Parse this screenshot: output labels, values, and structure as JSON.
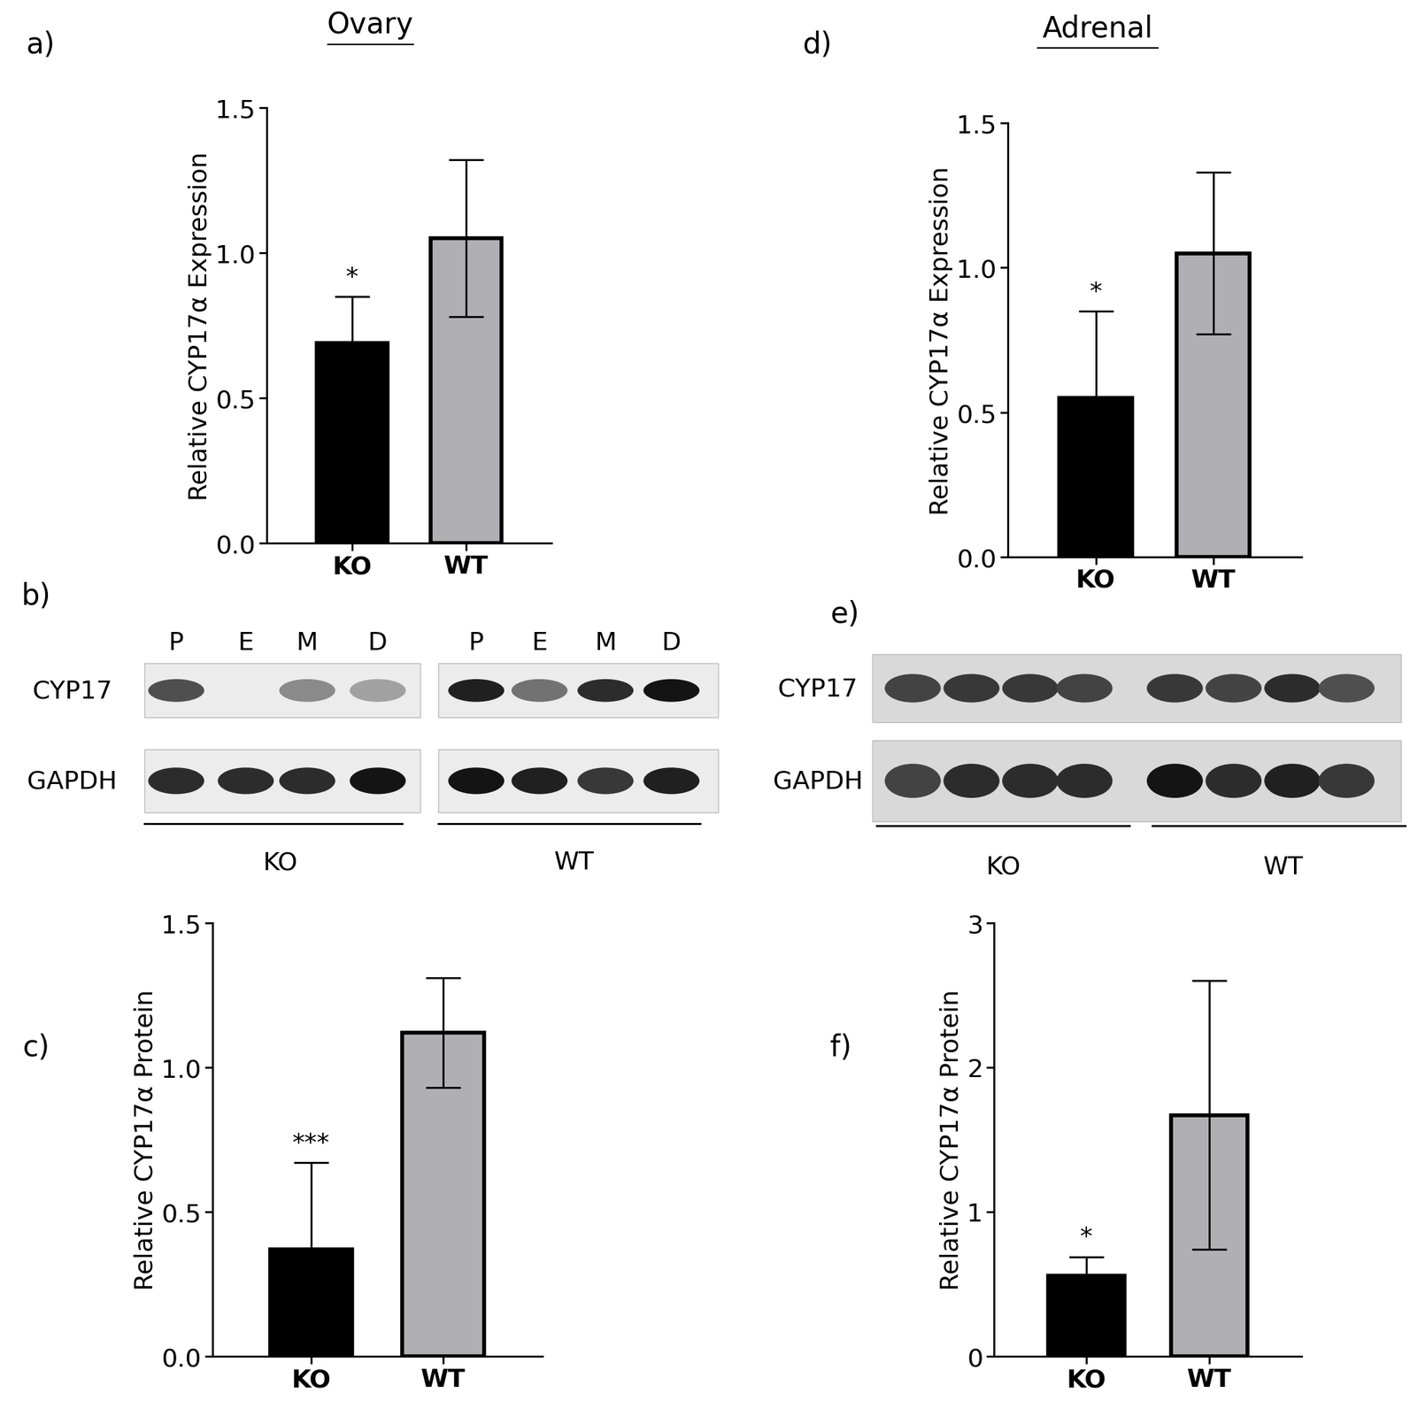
{
  "section_titles": [
    "Ovary",
    "Adrenal"
  ],
  "chart_data": [
    {
      "panel": "a)",
      "type": "bar",
      "ylabel": "Relative CYP17α Expression",
      "categories": [
        "KO",
        "WT"
      ],
      "values": [
        0.69,
        1.05
      ],
      "errors": [
        0.16,
        0.27
      ],
      "colors": [
        "#000000",
        "#b0b0b4"
      ],
      "annotations": [
        {
          "category": "KO",
          "text": "*"
        }
      ],
      "ylim": [
        0,
        1.5
      ],
      "yticks": [
        {
          "value": 0,
          "label": "0.0"
        },
        {
          "value": 0.5,
          "label": "0.5"
        },
        {
          "value": 1.0,
          "label": "1.0"
        },
        {
          "value": 1.5,
          "label": "1.5"
        }
      ]
    },
    {
      "panel": "c)",
      "type": "bar",
      "ylabel": "Relative CYP17α Protein",
      "categories": [
        "KO",
        "WT"
      ],
      "values": [
        0.37,
        1.12
      ],
      "errors": [
        0.3,
        0.19
      ],
      "colors": [
        "#000000",
        "#b0b0b4"
      ],
      "annotations": [
        {
          "category": "KO",
          "text": "***"
        }
      ],
      "ylim": [
        0,
        1.5
      ],
      "yticks": [
        {
          "value": 0,
          "label": "0.0"
        },
        {
          "value": 0.5,
          "label": "0.5"
        },
        {
          "value": 1.0,
          "label": "1.0"
        },
        {
          "value": 1.5,
          "label": "1.5"
        }
      ]
    },
    {
      "panel": "d)",
      "type": "bar",
      "ylabel": "Relative CYP17α Expression",
      "categories": [
        "KO",
        "WT"
      ],
      "values": [
        0.55,
        1.05
      ],
      "errors": [
        0.3,
        0.28
      ],
      "colors": [
        "#000000",
        "#b0b0b4"
      ],
      "annotations": [
        {
          "category": "KO",
          "text": "*"
        }
      ],
      "ylim": [
        0,
        1.5
      ],
      "yticks": [
        {
          "value": 0,
          "label": "0.0"
        },
        {
          "value": 0.5,
          "label": "0.5"
        },
        {
          "value": 1.0,
          "label": "1.0"
        },
        {
          "value": 1.5,
          "label": "1.5"
        }
      ]
    },
    {
      "panel": "f)",
      "type": "bar",
      "ylabel": "Relative CYP17α Protein",
      "categories": [
        "KO",
        "WT"
      ],
      "values": [
        0.56,
        1.67
      ],
      "errors": [
        0.13,
        0.93
      ],
      "colors": [
        "#000000",
        "#b0b0b4"
      ],
      "annotations": [
        {
          "category": "KO",
          "text": "*"
        }
      ],
      "ylim": [
        0,
        3
      ],
      "yticks": [
        0,
        1,
        2,
        3
      ]
    }
  ],
  "blots": [
    {
      "panel": "b)",
      "lanes": [
        "P",
        "E",
        "M",
        "D"
      ],
      "groups": [
        "KO",
        "WT"
      ],
      "rows": [
        {
          "name": "CYP17",
          "intensity": {
            "KO": [
              0.75,
              0.0,
              0.5,
              0.4
            ],
            "WT": [
              0.95,
              0.6,
              0.9,
              1.0
            ]
          }
        },
        {
          "name": "GAPDH",
          "intensity": {
            "KO": [
              0.9,
              0.9,
              0.9,
              1.0
            ],
            "WT": [
              1.0,
              0.95,
              0.85,
              0.95
            ]
          }
        }
      ]
    },
    {
      "panel": "e)",
      "lanes": [
        null,
        null,
        null,
        null
      ],
      "groups": [
        "KO",
        "WT"
      ],
      "rows": [
        {
          "name": "CYP17",
          "intensity": {
            "KO": [
              0.8,
              0.85,
              0.85,
              0.8
            ],
            "WT": [
              0.85,
              0.8,
              0.9,
              0.75
            ]
          }
        },
        {
          "name": "GAPDH",
          "intensity": {
            "KO": [
              0.8,
              0.9,
              0.9,
              0.9
            ],
            "WT": [
              1.0,
              0.9,
              0.95,
              0.85
            ]
          }
        }
      ]
    }
  ]
}
